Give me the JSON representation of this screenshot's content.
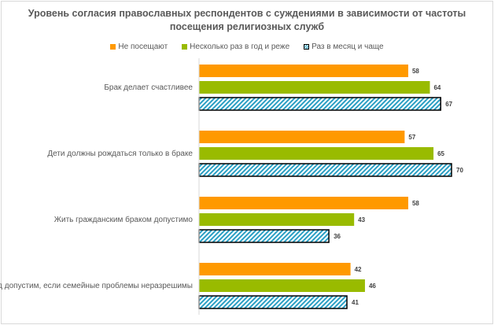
{
  "chart_data": {
    "type": "bar",
    "orientation": "horizontal",
    "title": "Уровень согласия православных респондентов с суждениями в зависимости от частоты посещения религиозных служб",
    "categories": [
      "Брак делает счастливее",
      "Дети должны рождаться только в браке",
      "Жить гражданским браком допустимо",
      "Развод допустим, если семейные проблемы неразрешимы"
    ],
    "series": [
      {
        "name": "Не посещают",
        "color": "#ff9900",
        "values": [
          58,
          57,
          58,
          42
        ]
      },
      {
        "name": "Несколько раз в год и реже",
        "color": "#99bb00",
        "values": [
          64,
          65,
          43,
          46
        ]
      },
      {
        "name": "Раз в месяц и чаще",
        "color": "#2a9fc4",
        "pattern": "hatched",
        "values": [
          67,
          70,
          36,
          41
        ]
      }
    ],
    "xlim": [
      0,
      70
    ],
    "legend": "top",
    "grid": false
  }
}
